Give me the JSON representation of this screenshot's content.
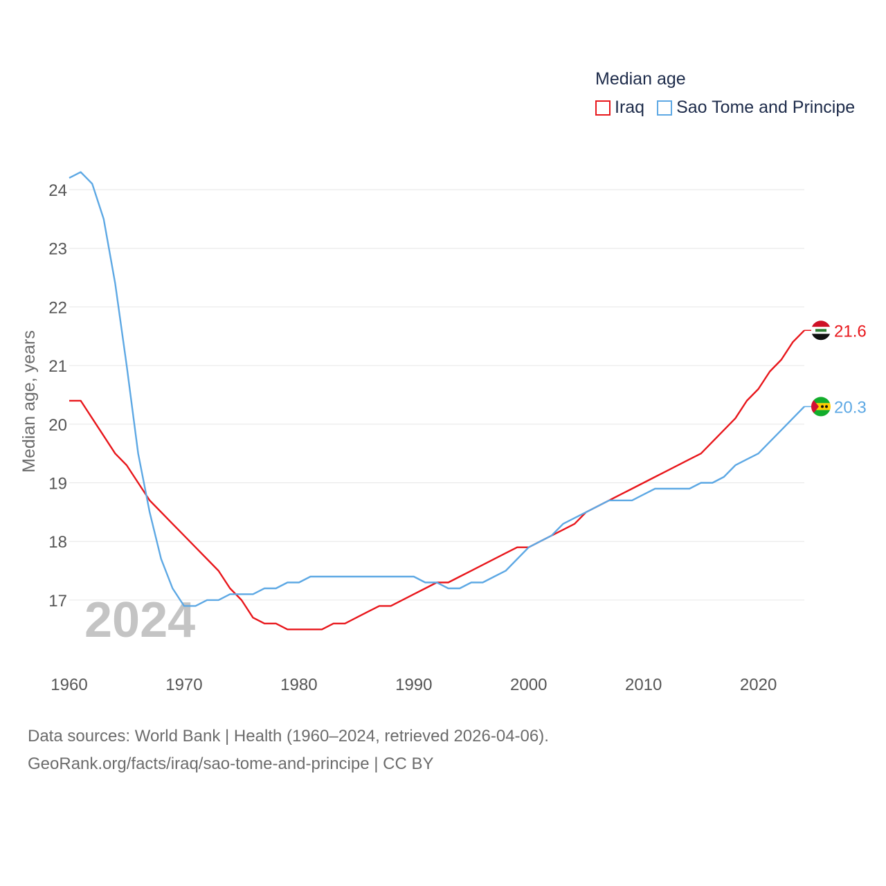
{
  "chart_data": {
    "type": "line",
    "title": "Median age",
    "ylabel": "Median age, years",
    "xlabel": "",
    "xlim": [
      1960,
      2024
    ],
    "ylim": [
      16,
      24.5
    ],
    "yticks": [
      17,
      18,
      19,
      20,
      21,
      22,
      23,
      24
    ],
    "xticks": [
      1960,
      1970,
      1980,
      1990,
      2000,
      2010,
      2020
    ],
    "watermark_year": "2024",
    "x": [
      1960,
      1961,
      1962,
      1963,
      1964,
      1965,
      1966,
      1967,
      1968,
      1969,
      1970,
      1971,
      1972,
      1973,
      1974,
      1975,
      1976,
      1977,
      1978,
      1979,
      1980,
      1981,
      1982,
      1983,
      1984,
      1985,
      1986,
      1987,
      1988,
      1989,
      1990,
      1991,
      1992,
      1993,
      1994,
      1995,
      1996,
      1997,
      1998,
      1999,
      2000,
      2001,
      2002,
      2003,
      2004,
      2005,
      2006,
      2007,
      2008,
      2009,
      2010,
      2011,
      2012,
      2013,
      2014,
      2015,
      2016,
      2017,
      2018,
      2019,
      2020,
      2021,
      2022,
      2023,
      2024
    ],
    "series": [
      {
        "name": "Iraq",
        "color": "#e8161b",
        "end_label": "21.6",
        "values": [
          20.4,
          20.4,
          20.1,
          19.8,
          19.5,
          19.3,
          19.0,
          18.7,
          18.5,
          18.3,
          18.1,
          17.9,
          17.7,
          17.5,
          17.2,
          17.0,
          16.7,
          16.6,
          16.6,
          16.5,
          16.5,
          16.5,
          16.5,
          16.6,
          16.6,
          16.7,
          16.8,
          16.9,
          16.9,
          17.0,
          17.1,
          17.2,
          17.3,
          17.3,
          17.4,
          17.5,
          17.6,
          17.7,
          17.8,
          17.9,
          17.9,
          18.0,
          18.1,
          18.2,
          18.3,
          18.5,
          18.6,
          18.7,
          18.8,
          18.9,
          19.0,
          19.1,
          19.2,
          19.3,
          19.4,
          19.5,
          19.7,
          19.9,
          20.1,
          20.4,
          20.6,
          20.9,
          21.1,
          21.4,
          21.6
        ]
      },
      {
        "name": "Sao Tome and Principe",
        "color": "#5da8e4",
        "end_label": "20.3",
        "values": [
          24.2,
          24.3,
          24.1,
          23.5,
          22.4,
          21.0,
          19.5,
          18.5,
          17.7,
          17.2,
          16.9,
          16.9,
          17.0,
          17.0,
          17.1,
          17.1,
          17.1,
          17.2,
          17.2,
          17.3,
          17.3,
          17.4,
          17.4,
          17.4,
          17.4,
          17.4,
          17.4,
          17.4,
          17.4,
          17.4,
          17.4,
          17.3,
          17.3,
          17.2,
          17.2,
          17.3,
          17.3,
          17.4,
          17.5,
          17.7,
          17.9,
          18.0,
          18.1,
          18.3,
          18.4,
          18.5,
          18.6,
          18.7,
          18.7,
          18.7,
          18.8,
          18.9,
          18.9,
          18.9,
          18.9,
          19.0,
          19.0,
          19.1,
          19.3,
          19.4,
          19.5,
          19.7,
          19.9,
          20.1,
          20.3
        ]
      }
    ]
  },
  "source": {
    "line1": "Data sources: World Bank | Health (1960–2024, retrieved 2026-04-06).",
    "line2": "GeoRank.org/facts/iraq/sao-tome-and-principe | CC BY"
  }
}
